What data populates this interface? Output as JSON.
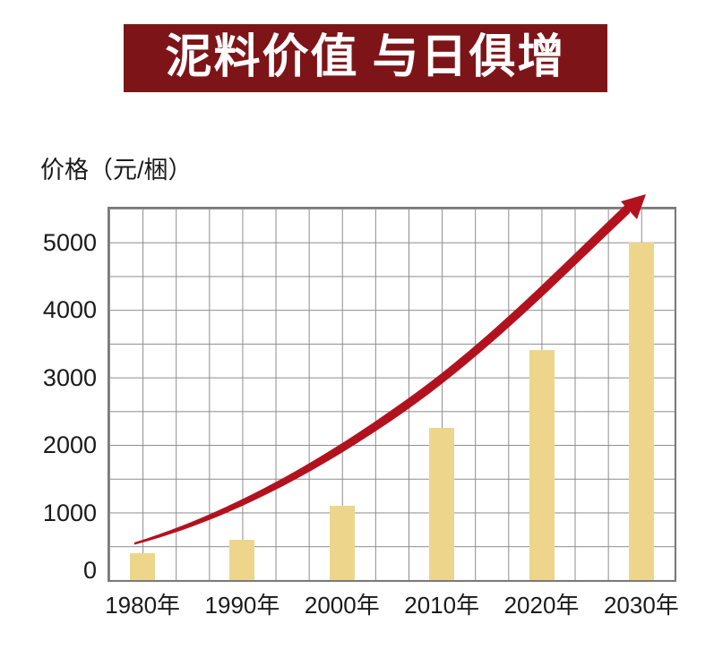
{
  "page": {
    "background": "#FFFFFF"
  },
  "title_banner": {
    "text": "泥料价值 与日俱增",
    "bg_color": "#7D1518",
    "text_color": "#FFFFFF"
  },
  "chart_data": {
    "type": "bar",
    "title": "泥料价值 与日俱增",
    "ylabel": "价格（元/梱）",
    "xlabel": "",
    "categories": [
      "1980年",
      "1990年",
      "2000年",
      "2010年",
      "2020年",
      "2030年"
    ],
    "values": [
      400,
      600,
      1100,
      2250,
      3400,
      5000
    ],
    "ylim": [
      0,
      5500
    ],
    "y_ticks": [
      0,
      1000,
      2000,
      3000,
      4000,
      5000
    ],
    "grid": {
      "visible": true,
      "step": 500,
      "cells": "square",
      "color": "#8C8C8C"
    },
    "legend": "none",
    "bar_color": "#EDD68C",
    "trend_arrow": {
      "type": "curved-rising-arrow",
      "color": "#B2121E",
      "description": "tapered red swoosh rising from the 1980 bar to an arrowhead above the 2030 bar",
      "start_value": 550,
      "end_value": 5650
    }
  }
}
